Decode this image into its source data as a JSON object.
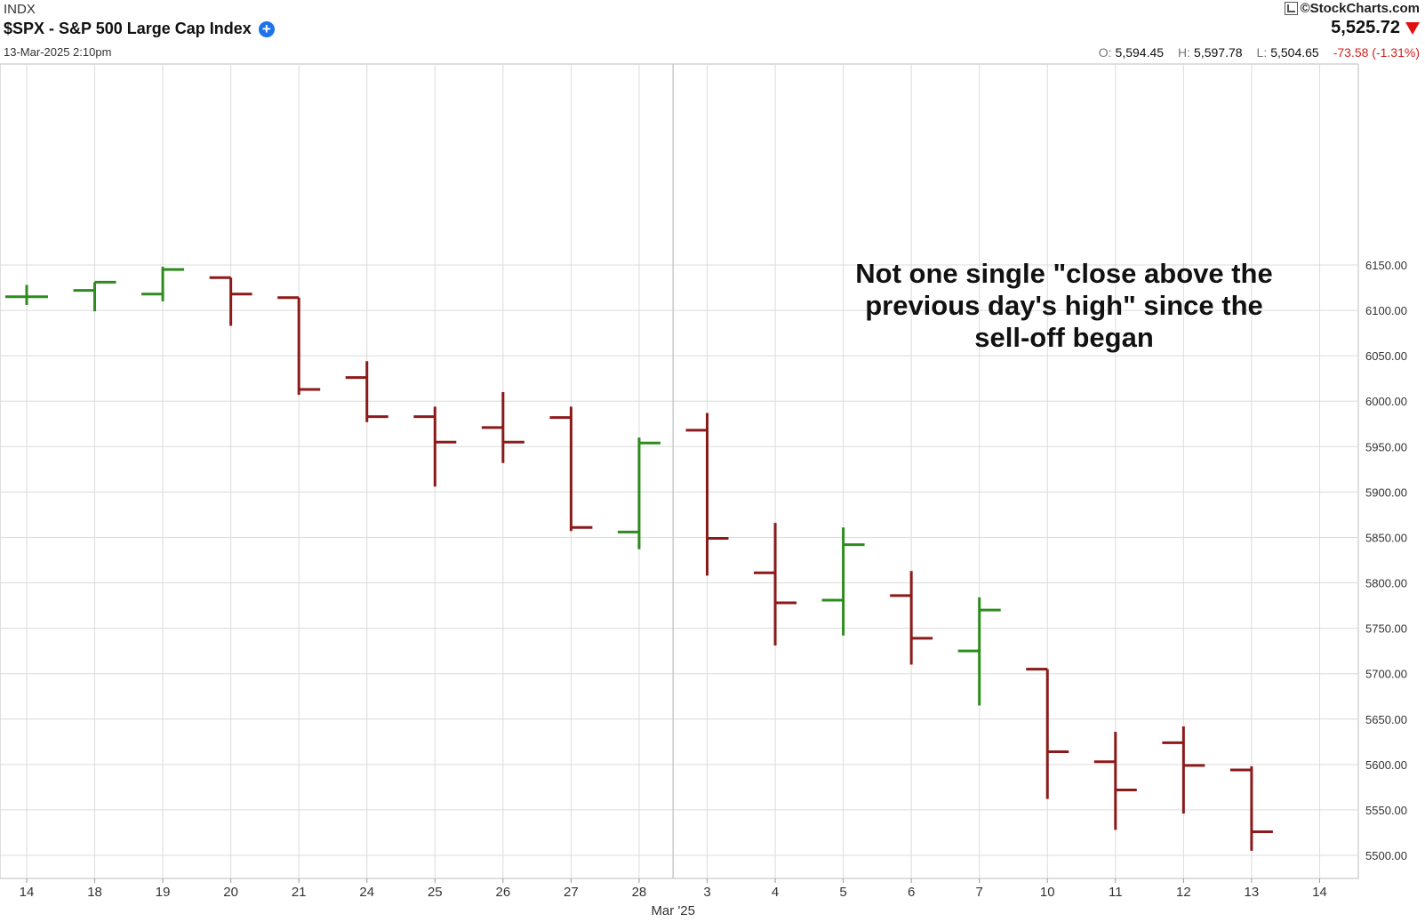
{
  "header": {
    "exchange": "INDX",
    "title": "$SPX - S&P 500 Large Cap Index",
    "datetime": "13-Mar-2025 2:10pm",
    "brand": "©StockCharts.com",
    "last": "5,525.72",
    "open_label": "O:",
    "open": "5,594.45",
    "high_label": "H:",
    "high": "5,597.78",
    "low_label": "L:",
    "low": "5,504.65",
    "change": "-73.58 (-1.31%)"
  },
  "annotation_lines": [
    "Not one single \"close above the",
    "previous day's high\" since the",
    "sell-off began"
  ],
  "colors": {
    "up": "#2e8b1e",
    "down": "#8b1a1a",
    "grid": "#dcdcdc",
    "accent": "#1e73e8"
  },
  "chart_data": {
    "type": "ohlc",
    "title": "$SPX - S&P 500 Large Cap Index",
    "ylim": [
      5480,
      6170
    ],
    "yticks": [
      5500,
      5550,
      5600,
      5650,
      5700,
      5750,
      5800,
      5850,
      5900,
      5950,
      6000,
      6050,
      6100,
      6150
    ],
    "ytick_labels": [
      "5500.00",
      "5550.00",
      "5600.00",
      "5650.00",
      "5700.00",
      "5750.00",
      "5800.00",
      "5850.00",
      "5900.00",
      "5950.00",
      "6000.00",
      "6050.00",
      "6100.00",
      "6150.00"
    ],
    "x_labels": [
      "14",
      "18",
      "19",
      "20",
      "21",
      "24",
      "25",
      "26",
      "27",
      "28",
      "3",
      "4",
      "5",
      "6",
      "7",
      "10",
      "11",
      "12",
      "13",
      "14"
    ],
    "month_label": "Mar '25",
    "bars": [
      {
        "date": "14",
        "open": 6115,
        "high": 6128,
        "low": 6106,
        "close": 6115
      },
      {
        "date": "18",
        "open": 6122,
        "high": 6131,
        "low": 6099,
        "close": 6131
      },
      {
        "date": "19",
        "open": 6118,
        "high": 6148,
        "low": 6110,
        "close": 6145
      },
      {
        "date": "20",
        "open": 6136,
        "high": 6136,
        "low": 6083,
        "close": 6118
      },
      {
        "date": "21",
        "open": 6114,
        "high": 6114,
        "low": 6007,
        "close": 6013
      },
      {
        "date": "24",
        "open": 6026,
        "high": 6044,
        "low": 5977,
        "close": 5983
      },
      {
        "date": "25",
        "open": 5983,
        "high": 5994,
        "low": 5906,
        "close": 5955
      },
      {
        "date": "26",
        "open": 5971,
        "high": 6010,
        "low": 5932,
        "close": 5955
      },
      {
        "date": "27",
        "open": 5982,
        "high": 5994,
        "low": 5857,
        "close": 5861
      },
      {
        "date": "28",
        "open": 5856,
        "high": 5960,
        "low": 5837,
        "close": 5954
      },
      {
        "date": "3",
        "open": 5968,
        "high": 5987,
        "low": 5808,
        "close": 5849
      },
      {
        "date": "4",
        "open": 5811,
        "high": 5866,
        "low": 5731,
        "close": 5778
      },
      {
        "date": "5",
        "open": 5781,
        "high": 5861,
        "low": 5742,
        "close": 5842
      },
      {
        "date": "6",
        "open": 5786,
        "high": 5813,
        "low": 5710,
        "close": 5739
      },
      {
        "date": "7",
        "open": 5725,
        "high": 5784,
        "low": 5665,
        "close": 5770
      },
      {
        "date": "10",
        "open": 5705,
        "high": 5705,
        "low": 5562,
        "close": 5614
      },
      {
        "date": "11",
        "open": 5603,
        "high": 5636,
        "low": 5528,
        "close": 5572
      },
      {
        "date": "12",
        "open": 5624,
        "high": 5642,
        "low": 5546,
        "close": 5599
      },
      {
        "date": "13",
        "open": 5594,
        "high": 5598,
        "low": 5505,
        "close": 5526
      }
    ]
  }
}
